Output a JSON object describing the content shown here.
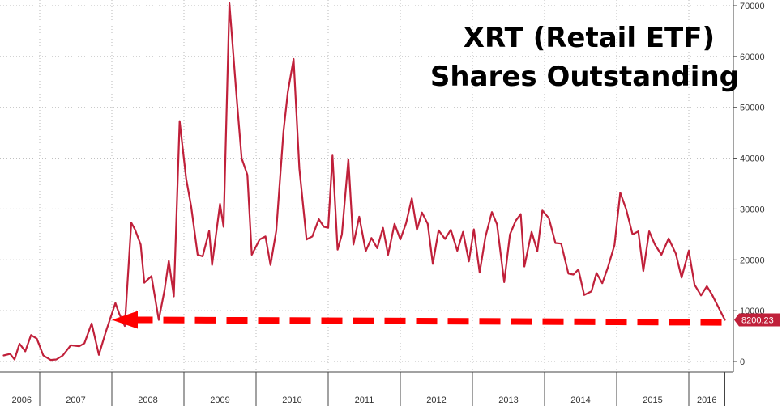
{
  "chart_data": {
    "type": "line",
    "title_lines": [
      "XRT (Retail ETF)",
      "Shares Outstanding"
    ],
    "xlabel": "",
    "ylabel": "",
    "x_range": [
      2006.0,
      2016.35
    ],
    "ylim": [
      -2000,
      72000
    ],
    "y_ticks": [
      0,
      10000,
      20000,
      30000,
      40000,
      50000,
      60000,
      70000
    ],
    "y_tick_labels": [
      "0",
      "10000",
      "20000",
      "30000",
      "40000",
      "50000",
      "60000",
      "70000"
    ],
    "x_ticks": [
      {
        "label": "2006",
        "start": 2006.0,
        "end": 2006.5
      },
      {
        "label": "2007",
        "start": 2006.5,
        "end": 2007.5
      },
      {
        "label": "2008",
        "start": 2007.5,
        "end": 2008.5
      },
      {
        "label": "2009",
        "start": 2008.5,
        "end": 2009.5
      },
      {
        "label": "2010",
        "start": 2009.5,
        "end": 2010.5
      },
      {
        "label": "2011",
        "start": 2010.5,
        "end": 2011.5
      },
      {
        "label": "2012",
        "start": 2011.5,
        "end": 2012.5
      },
      {
        "label": "2013",
        "start": 2012.5,
        "end": 2013.5
      },
      {
        "label": "2014",
        "start": 2013.5,
        "end": 2014.5
      },
      {
        "label": "2015",
        "start": 2014.5,
        "end": 2015.5
      },
      {
        "label": "2016",
        "start": 2015.5,
        "end": 2016.0
      }
    ],
    "grid": true,
    "series": [
      {
        "name": "",
        "color": "#c0203a",
        "x": [
          2006.0,
          2006.09,
          2006.15,
          2006.22,
          2006.3,
          2006.38,
          2006.46,
          2006.55,
          2006.65,
          2006.73,
          2006.82,
          2006.93,
          2007.05,
          2007.12,
          2007.22,
          2007.32,
          2007.42,
          2007.55,
          2007.6,
          2007.68,
          2007.77,
          2007.82,
          2007.9,
          2007.95,
          2008.05,
          2008.15,
          2008.23,
          2008.29,
          2008.36,
          2008.44,
          2008.53,
          2008.6,
          2008.69,
          2008.76,
          2008.85,
          2008.89,
          2009.0,
          2009.05,
          2009.13,
          2009.23,
          2009.3,
          2009.38,
          2009.44,
          2009.55,
          2009.63,
          2009.7,
          2009.78,
          2009.88,
          2009.94,
          2010.02,
          2010.1,
          2010.2,
          2010.28,
          2010.37,
          2010.44,
          2010.5,
          2010.56,
          2010.63,
          2010.69,
          2010.78,
          2010.85,
          2010.93,
          2011.02,
          2011.1,
          2011.18,
          2011.26,
          2011.33,
          2011.42,
          2011.5,
          2011.58,
          2011.66,
          2011.73,
          2011.8,
          2011.88,
          2011.95,
          2012.03,
          2012.12,
          2012.2,
          2012.29,
          2012.37,
          2012.45,
          2012.52,
          2012.6,
          2012.68,
          2012.77,
          2012.84,
          2012.94,
          2013.02,
          2013.1,
          2013.17,
          2013.22,
          2013.32,
          2013.4,
          2013.47,
          2013.56,
          2013.65,
          2013.73,
          2013.83,
          2013.9,
          2013.97,
          2014.05,
          2014.15,
          2014.22,
          2014.3,
          2014.38,
          2014.47,
          2014.55,
          2014.63,
          2014.72,
          2014.8,
          2014.87,
          2014.95,
          2015.03,
          2015.12,
          2015.22,
          2015.32,
          2015.4,
          2015.5,
          2015.58,
          2015.67,
          2015.75,
          2015.82
        ],
        "values": [
          1200,
          1500,
          400,
          3500,
          2000,
          5200,
          4500,
          1200,
          300,
          400,
          1200,
          3200,
          3000,
          3600,
          7500,
          1300,
          6000,
          11500,
          9500,
          7000,
          27300,
          26000,
          23000,
          15500,
          16800,
          8200,
          14000,
          19800,
          12800,
          47300,
          36000,
          30500,
          21000,
          20700,
          25700,
          19000,
          31000,
          26500,
          70500,
          52000,
          40000,
          36700,
          21000,
          24000,
          24600,
          19000,
          25700,
          45200,
          53000,
          59500,
          38000,
          24000,
          24600,
          28000,
          26500,
          26300,
          40500,
          22000,
          25000,
          39800,
          23000,
          28500,
          21700,
          24300,
          22300,
          26300,
          21000,
          27100,
          24000,
          27200,
          32100,
          25900,
          29300,
          27100,
          19200,
          25800,
          24100,
          25900,
          21800,
          25500,
          19700,
          26000,
          17500,
          24500,
          29400,
          27000,
          15600,
          25000,
          27700,
          29000,
          18700,
          25500,
          21700,
          29700,
          28200,
          23300,
          23200,
          17300,
          17100,
          18100,
          13100,
          13800,
          17400,
          15400,
          18600,
          22900,
          33200,
          30000,
          25000,
          25600,
          17800,
          25600,
          23000,
          21000,
          24200,
          21200,
          16500,
          21800,
          15100,
          13000,
          14800,
          13200
        ]
      }
    ],
    "last_value_label": "8200.23",
    "last_point": {
      "x": 2016.0,
      "y": 8200.23
    },
    "arrow": {
      "color": "#ff0000",
      "from": {
        "x": 2016.0,
        "y": 7700
      },
      "to": {
        "x": 2007.5,
        "y": 8200
      },
      "style": "dashed"
    }
  }
}
